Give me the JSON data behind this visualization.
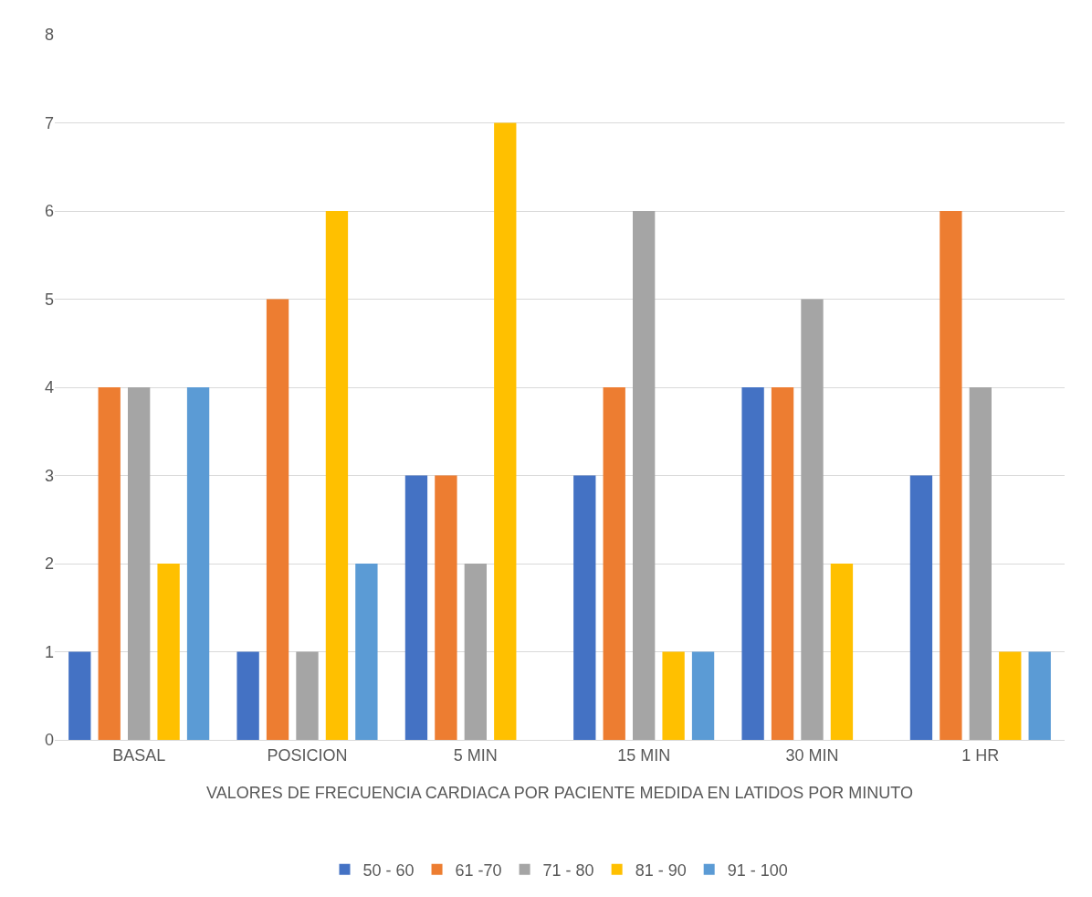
{
  "chart_data": {
    "type": "bar",
    "xlabel": "VALORES DE FRECUENCIA CARDIACA POR PACIENTE MEDIDA EN LATIDOS POR MINUTO",
    "categories": [
      "BASAL",
      "POSICION",
      "5 MIN",
      "15 MIN",
      "30 MIN",
      "1 HR"
    ],
    "series": [
      {
        "name": "50 - 60",
        "color": "#4472c4",
        "values": [
          1,
          1,
          3,
          3,
          4,
          3
        ]
      },
      {
        "name": "61 -70",
        "color": "#ed7d31",
        "values": [
          4,
          5,
          3,
          4,
          4,
          6
        ]
      },
      {
        "name": "71 - 80",
        "color": "#a5a5a5",
        "values": [
          4,
          1,
          2,
          6,
          5,
          4
        ]
      },
      {
        "name": "81 - 90",
        "color": "#ffc000",
        "values": [
          2,
          6,
          7,
          1,
          2,
          1
        ]
      },
      {
        "name": "91 - 100",
        "color": "#5b9bd5",
        "values": [
          4,
          2,
          null,
          1,
          null,
          1
        ]
      }
    ],
    "ylim": [
      0,
      8
    ],
    "yticks": [
      0,
      1,
      2,
      3,
      4,
      5,
      6,
      7,
      8
    ],
    "grid": "y",
    "legend": "bottom"
  }
}
